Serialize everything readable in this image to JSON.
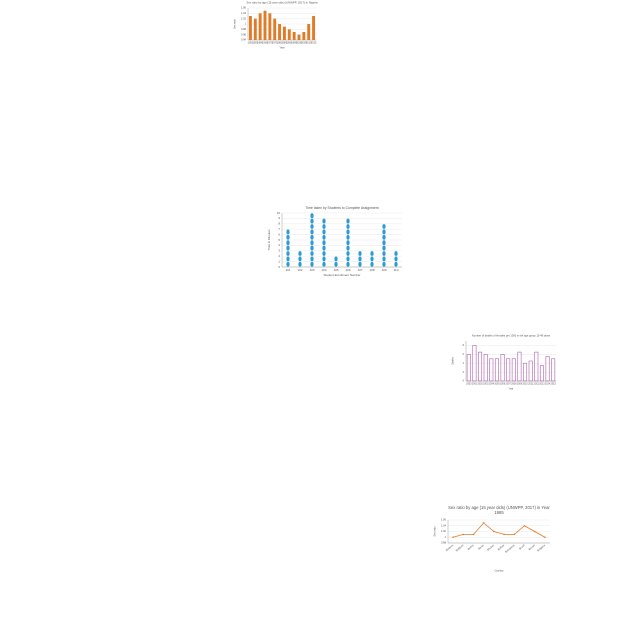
{
  "chart_data": [
    {
      "type": "bar",
      "title": "Sex ratio by age (15 year olds) (UNWPP, 2017) in Nigeria",
      "x_label": "Year",
      "y_label": "Sex ratio",
      "color": "#e07b28",
      "outline": false,
      "categories": [
        "1950",
        "1955",
        "1960",
        "1965",
        "1970",
        "1975",
        "1980",
        "1985",
        "1990",
        "1995",
        "2000",
        "2005",
        "2010",
        "2015"
      ],
      "values": [
        1.03,
        1.02,
        1.04,
        1.05,
        1.04,
        1.02,
        1.0,
        0.99,
        0.98,
        0.97,
        0.96,
        0.97,
        1.0,
        1.03
      ],
      "ylim": [
        0.94,
        1.06
      ],
      "yticks": [
        0.94,
        0.96,
        0.98,
        1,
        1.02,
        1.04,
        1.06
      ],
      "grid": true
    },
    {
      "type": "dot",
      "title": "Time taken by Students to Complete Assignment",
      "x_label": "Student Enrollment Number",
      "y_label": "Time in Minutes",
      "color": "#2a9bd6",
      "categories": [
        "101",
        "102",
        "103",
        "104",
        "105",
        "106",
        "107",
        "108",
        "109",
        "110"
      ],
      "values": [
        7,
        3,
        10,
        9,
        2,
        9,
        3,
        3,
        8,
        3
      ],
      "ylim": [
        0,
        10
      ],
      "yticks": [
        0,
        1,
        2,
        3,
        4,
        5,
        6,
        7,
        8,
        9,
        10
      ],
      "grid": true
    },
    {
      "type": "bar",
      "title": "Number of deaths of females per 1000 in the age group 15-49 years",
      "x_label": "Year",
      "y_label": "Deaths",
      "color": "#b060b0",
      "outline": true,
      "categories": [
        "2000",
        "2001",
        "2002",
        "2003",
        "2004",
        "2005",
        "2006",
        "2007",
        "2008",
        "2009",
        "2010",
        "2011",
        "2012",
        "2013",
        "2014",
        "2015"
      ],
      "values": [
        6,
        8,
        6.5,
        6,
        5,
        5,
        6,
        5,
        5,
        6.5,
        4,
        4.5,
        6.5,
        3.5,
        5.5,
        5
      ],
      "ylim": [
        0,
        9
      ],
      "yticks": [
        0,
        2,
        4,
        6,
        8
      ],
      "grid": true
    },
    {
      "type": "line",
      "title": [
        "Sex ratio by age (15 year olds) (UNWPP, 2017) in Year",
        "1985"
      ],
      "x_label": "Country",
      "y_label": "Sex ratio",
      "color": "#e07b28",
      "categories": [
        "Belarus",
        "Belgium",
        "Belize",
        "Benin",
        "Bhutan",
        "Bolivia",
        "Botswana",
        "Brazil",
        "Brunei",
        "Bulgaria"
      ],
      "values": [
        1.0,
        1.01,
        1.01,
        1.05,
        1.02,
        1.01,
        1.01,
        1.04,
        1.02,
        1.0
      ],
      "ylim": [
        0.98,
        1.06
      ],
      "yticks": [
        0.98,
        1,
        1.02,
        1.04,
        1.06
      ],
      "grid": true
    }
  ]
}
